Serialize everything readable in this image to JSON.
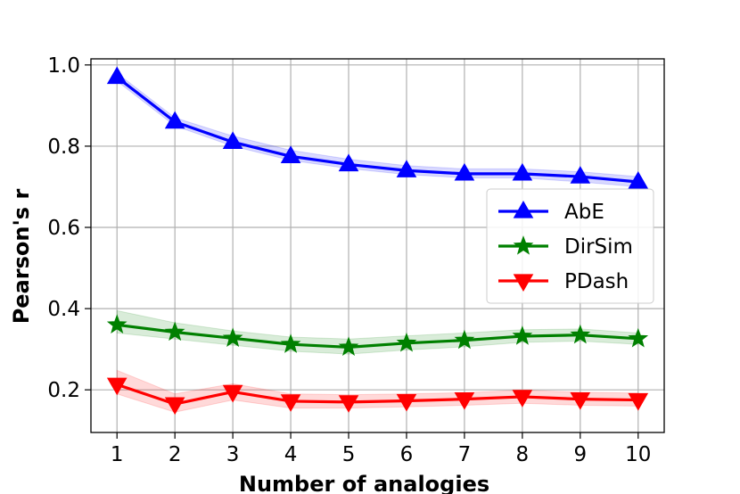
{
  "chart_data": {
    "type": "line",
    "title": "",
    "xlabel": "Number  of  analogies",
    "ylabel": "Pearson's r",
    "x": [
      1,
      2,
      3,
      4,
      5,
      6,
      7,
      8,
      9,
      10
    ],
    "xticks": [
      "1",
      "2",
      "3",
      "4",
      "5",
      "6",
      "7",
      "8",
      "9",
      "10"
    ],
    "yticks": [
      "0.2",
      "0.4",
      "0.6",
      "0.8",
      "1.0"
    ],
    "xlim": [
      0.55,
      10.45
    ],
    "ylim": [
      0.095,
      1.015
    ],
    "grid": true,
    "legend_position": "center-right",
    "series": [
      {
        "name": "AbE",
        "color": "#0000ff",
        "marker": "triangle-up",
        "values": [
          0.97,
          0.86,
          0.81,
          0.775,
          0.755,
          0.74,
          0.732,
          0.732,
          0.725,
          0.712
        ],
        "band_lower": [
          0.96,
          0.85,
          0.8,
          0.765,
          0.745,
          0.73,
          0.722,
          0.722,
          0.712,
          0.7
        ],
        "band_upper": [
          0.98,
          0.87,
          0.825,
          0.79,
          0.768,
          0.752,
          0.744,
          0.744,
          0.737,
          0.725
        ]
      },
      {
        "name": "DirSim",
        "color": "#008000",
        "marker": "star",
        "values": [
          0.36,
          0.342,
          0.327,
          0.312,
          0.305,
          0.315,
          0.322,
          0.332,
          0.335,
          0.326
        ],
        "band_lower": [
          0.34,
          0.325,
          0.31,
          0.295,
          0.288,
          0.298,
          0.306,
          0.317,
          0.32,
          0.312
        ],
        "band_upper": [
          0.395,
          0.365,
          0.345,
          0.33,
          0.325,
          0.333,
          0.34,
          0.348,
          0.35,
          0.34
        ]
      },
      {
        "name": "PDash",
        "color": "#ff0000",
        "marker": "triangle-down",
        "values": [
          0.213,
          0.165,
          0.195,
          0.172,
          0.17,
          0.173,
          0.177,
          0.183,
          0.177,
          0.175
        ],
        "band_lower": [
          0.19,
          0.145,
          0.175,
          0.155,
          0.155,
          0.158,
          0.162,
          0.167,
          0.162,
          0.16
        ],
        "band_upper": [
          0.248,
          0.19,
          0.215,
          0.19,
          0.188,
          0.19,
          0.193,
          0.199,
          0.194,
          0.192
        ]
      }
    ]
  }
}
